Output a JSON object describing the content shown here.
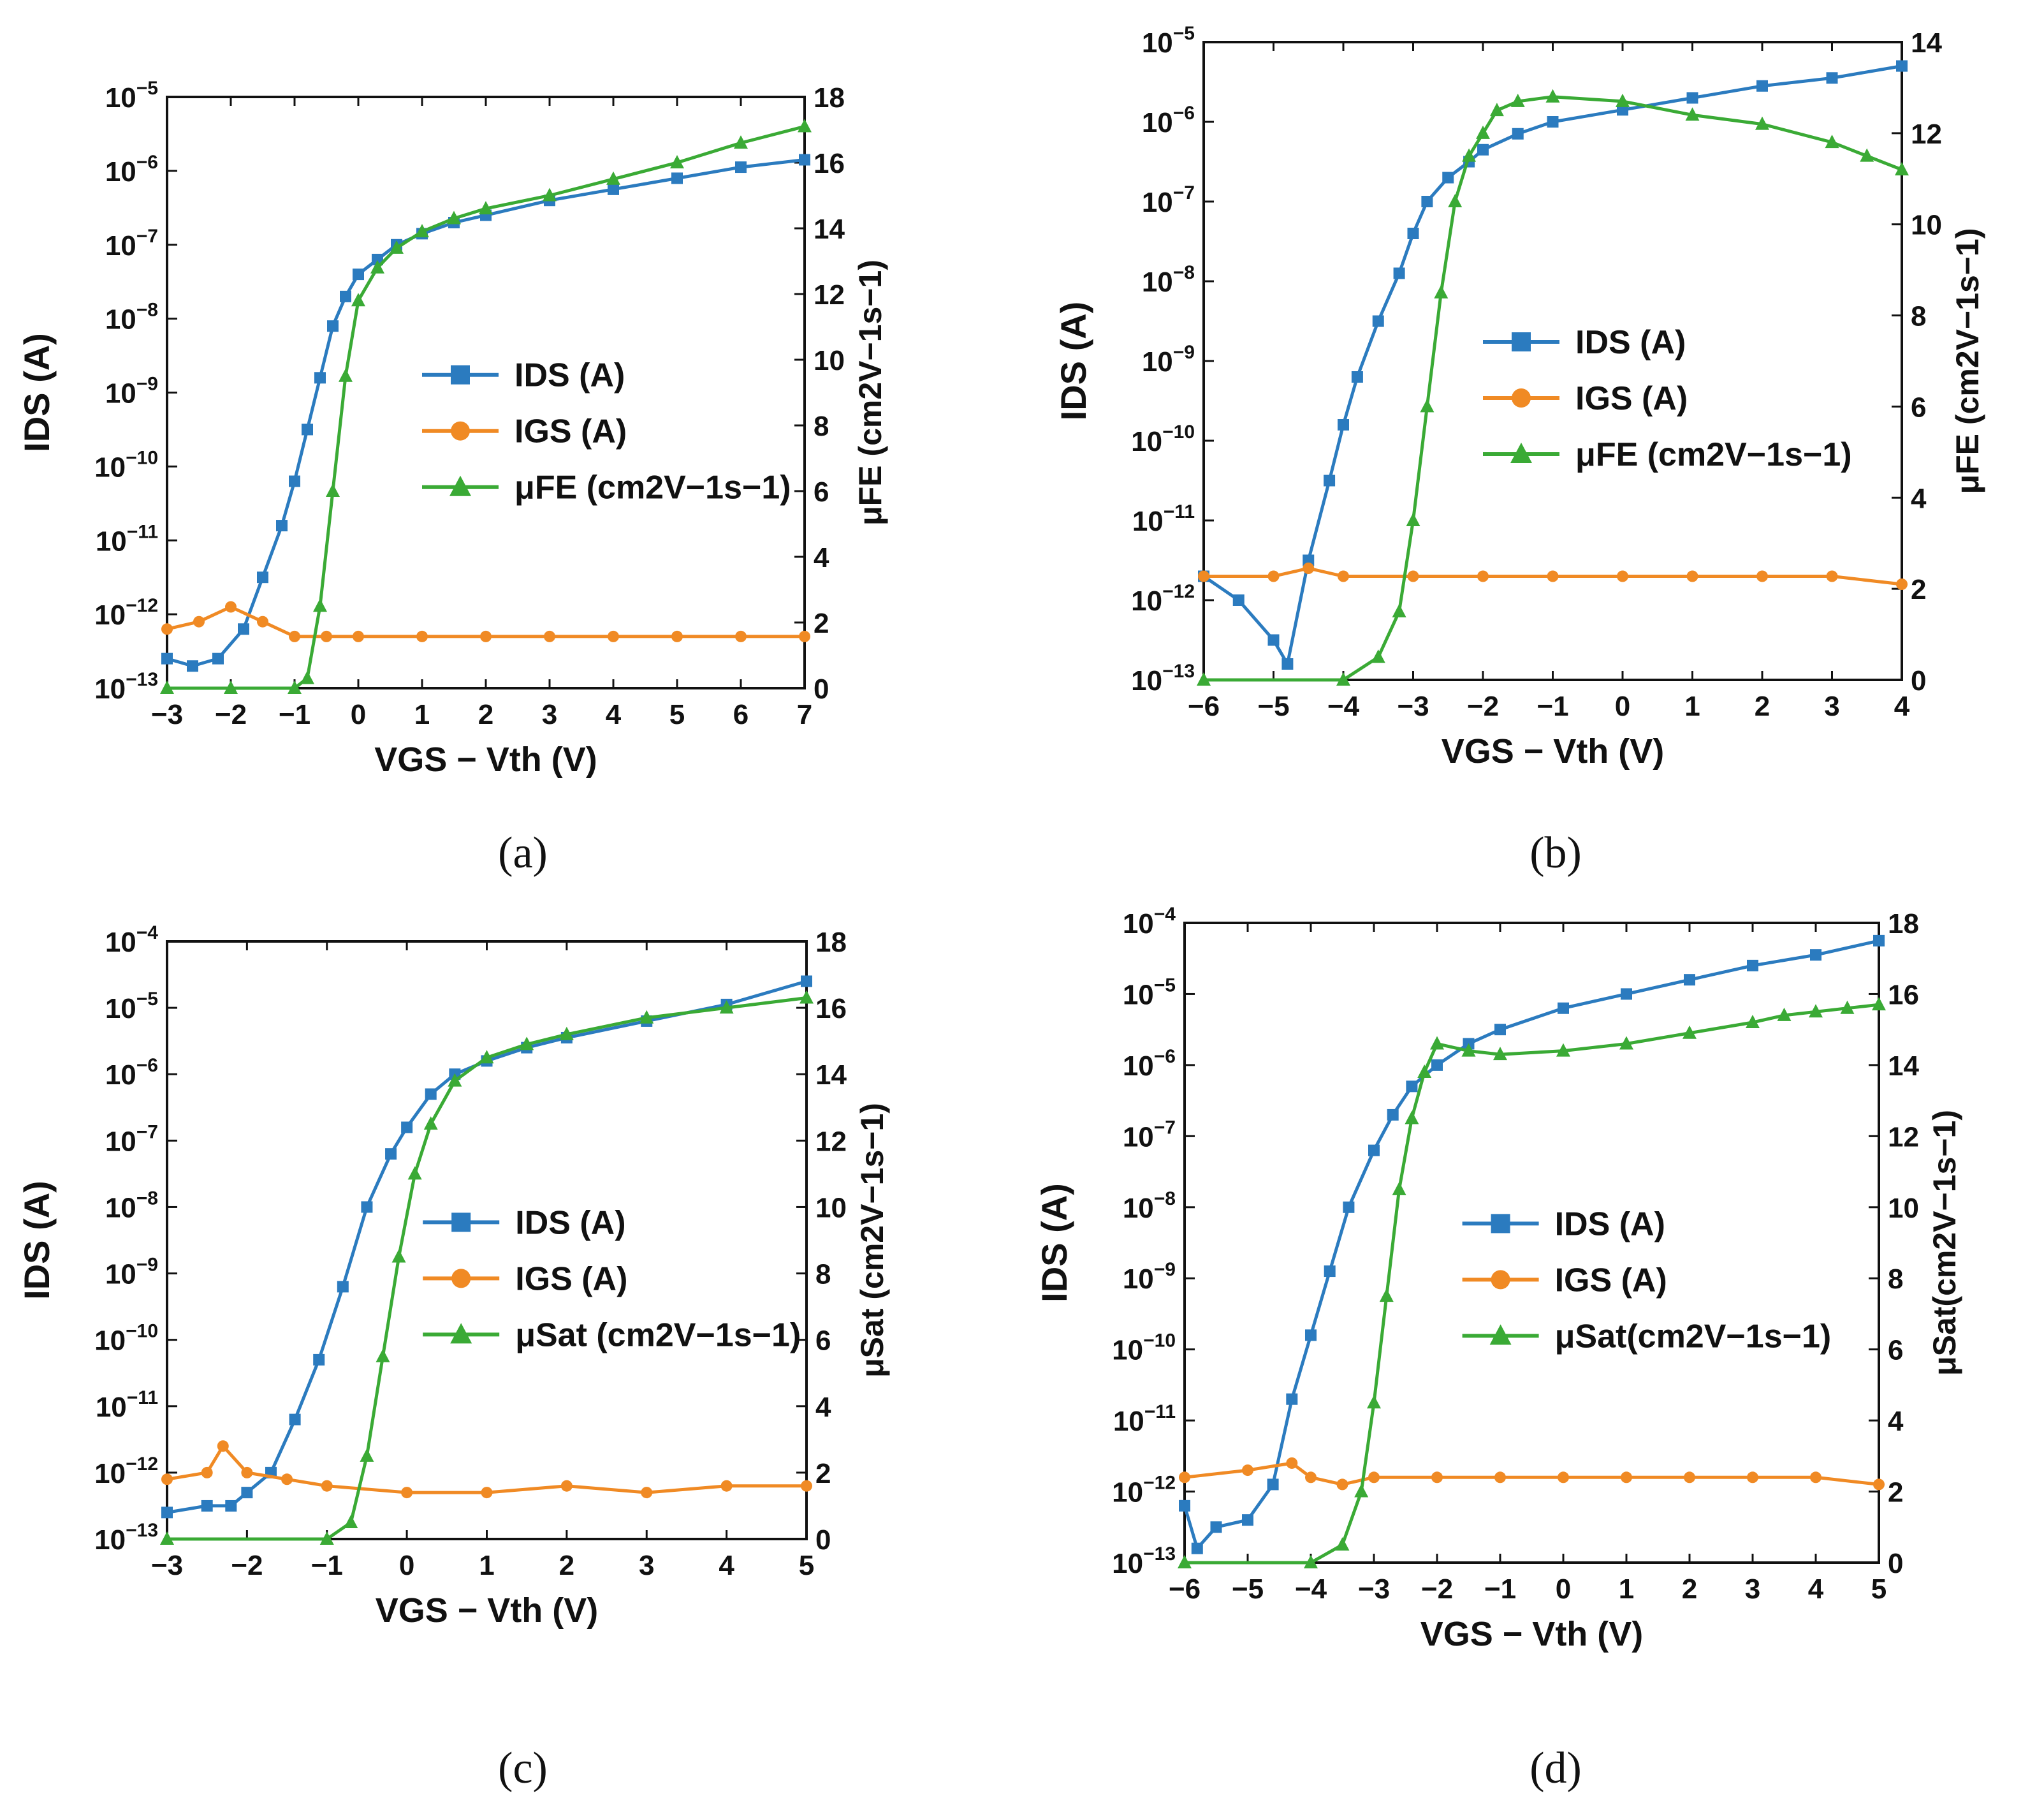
{
  "figure": {
    "panels": [
      {
        "id": "a",
        "label": "(a)"
      },
      {
        "id": "b",
        "label": "(b)"
      },
      {
        "id": "c",
        "label": "(c)"
      },
      {
        "id": "d",
        "label": "(d)"
      }
    ]
  },
  "colors": {
    "ids": "#2b7bbf",
    "igs": "#f08a24",
    "mu": "#3aaa35",
    "axis": "#111111"
  },
  "chart_data": [
    {
      "panel": "a",
      "type": "line",
      "xlabel": "VGS − Vth (V)",
      "ylabel": "IDS (A)",
      "y2label": "μFE (cm2V−1s−1)",
      "xlim": [
        -3,
        7
      ],
      "xticks": [
        -3,
        -2,
        -1,
        0,
        1,
        2,
        3,
        4,
        5,
        6,
        7
      ],
      "ylim_log": [
        -13,
        -5
      ],
      "yscale": "log",
      "y2lim": [
        0,
        18
      ],
      "y2ticks": [
        0,
        2,
        4,
        6,
        8,
        10,
        12,
        14,
        16,
        18
      ],
      "legend": [
        "IDS (A)",
        "IGS (A)",
        "μFE (cm2V−1s−1)"
      ],
      "legend_placement": "center-right",
      "series": [
        {
          "name": "IDS (A)",
          "axis": "left",
          "marker": "square",
          "x": [
            -3,
            -2.6,
            -2.2,
            -1.8,
            -1.5,
            -1.2,
            -1.0,
            -0.8,
            -0.6,
            -0.4,
            -0.2,
            0,
            0.3,
            0.6,
            1,
            1.5,
            2,
            3,
            4,
            5,
            6,
            7
          ],
          "y": [
            -12.6,
            -12.7,
            -12.6,
            -12.2,
            -11.5,
            -10.8,
            -10.2,
            -9.5,
            -8.8,
            -8.1,
            -7.7,
            -7.4,
            -7.2,
            -7.0,
            -6.85,
            -6.7,
            -6.6,
            -6.4,
            -6.25,
            -6.1,
            -5.95,
            -5.85
          ]
        },
        {
          "name": "IGS (A)",
          "axis": "left",
          "marker": "circle",
          "x": [
            -3,
            -2.5,
            -2,
            -1.5,
            -1,
            -0.5,
            0,
            1,
            2,
            3,
            4,
            5,
            6,
            7
          ],
          "y": [
            -12.2,
            -12.1,
            -11.9,
            -12.1,
            -12.3,
            -12.3,
            -12.3,
            -12.3,
            -12.3,
            -12.3,
            -12.3,
            -12.3,
            -12.3,
            -12.3
          ]
        },
        {
          "name": "μFE (cm2V−1s−1)",
          "axis": "right",
          "marker": "triangle",
          "x": [
            -3,
            -2,
            -1,
            -0.8,
            -0.6,
            -0.4,
            -0.2,
            0,
            0.3,
            0.6,
            1,
            1.5,
            2,
            3,
            4,
            5,
            6,
            7
          ],
          "y": [
            0,
            0,
            0,
            0.3,
            2.5,
            6,
            9.5,
            11.8,
            12.8,
            13.4,
            13.9,
            14.3,
            14.6,
            15.0,
            15.5,
            16.0,
            16.6,
            17.1
          ]
        }
      ]
    },
    {
      "panel": "b",
      "type": "line",
      "xlabel": "VGS − Vth (V)",
      "ylabel": "IDS (A)",
      "y2label": "μFE (cm2V−1s−1)",
      "xlim": [
        -6,
        4
      ],
      "xticks": [
        -6,
        -5,
        -4,
        -3,
        -2,
        -1,
        0,
        1,
        2,
        3,
        4
      ],
      "ylim_log": [
        -13,
        -5
      ],
      "yscale": "log",
      "y2lim": [
        0,
        14
      ],
      "y2ticks": [
        0,
        2,
        4,
        6,
        8,
        10,
        12,
        14
      ],
      "legend": [
        "IDS (A)",
        "IGS (A)",
        "μFE (cm2V−1s−1)"
      ],
      "legend_placement": "center-right",
      "series": [
        {
          "name": "IDS (A)",
          "axis": "left",
          "marker": "square",
          "x": [
            -6,
            -5.5,
            -5,
            -4.8,
            -4.5,
            -4.2,
            -4.0,
            -3.8,
            -3.5,
            -3.2,
            -3.0,
            -2.8,
            -2.5,
            -2.2,
            -2.0,
            -1.5,
            -1,
            0,
            1,
            2,
            3,
            4
          ],
          "y": [
            -11.7,
            -12.0,
            -12.5,
            -12.8,
            -11.5,
            -10.5,
            -9.8,
            -9.2,
            -8.5,
            -7.9,
            -7.4,
            -7.0,
            -6.7,
            -6.5,
            -6.35,
            -6.15,
            -6.0,
            -5.85,
            -5.7,
            -5.55,
            -5.45,
            -5.3
          ]
        },
        {
          "name": "IGS (A)",
          "axis": "left",
          "marker": "circle",
          "x": [
            -6,
            -5,
            -4.5,
            -4,
            -3,
            -2,
            -1,
            0,
            1,
            2,
            3,
            4
          ],
          "y": [
            -11.7,
            -11.7,
            -11.6,
            -11.7,
            -11.7,
            -11.7,
            -11.7,
            -11.7,
            -11.7,
            -11.7,
            -11.7,
            -11.8
          ]
        },
        {
          "name": "μFE (cm2V−1s−1)",
          "axis": "right",
          "marker": "triangle",
          "x": [
            -6,
            -4,
            -3.5,
            -3.2,
            -3.0,
            -2.8,
            -2.6,
            -2.4,
            -2.2,
            -2.0,
            -1.8,
            -1.5,
            -1,
            0,
            1,
            2,
            3,
            3.5,
            4
          ],
          "y": [
            0,
            0,
            0.5,
            1.5,
            3.5,
            6,
            8.5,
            10.5,
            11.5,
            12,
            12.5,
            12.7,
            12.8,
            12.7,
            12.4,
            12.2,
            11.8,
            11.5,
            11.2
          ]
        }
      ]
    },
    {
      "panel": "c",
      "type": "line",
      "xlabel": "VGS − Vth (V)",
      "ylabel": "IDS (A)",
      "y2label": "μSat (cm2V−1s−1)",
      "xlim": [
        -3,
        5
      ],
      "xticks": [
        -3,
        -2,
        -1,
        0,
        1,
        2,
        3,
        4,
        5
      ],
      "ylim_log": [
        -13,
        -4
      ],
      "yscale": "log",
      "y2lim": [
        0,
        18
      ],
      "y2ticks": [
        0,
        2,
        4,
        6,
        8,
        10,
        12,
        14,
        16,
        18
      ],
      "legend": [
        "IDS (A)",
        "IGS (A)",
        "μSat (cm2V−1s−1)"
      ],
      "legend_placement": "center-right",
      "series": [
        {
          "name": "IDS (A)",
          "axis": "left",
          "marker": "square",
          "x": [
            -3,
            -2.5,
            -2.2,
            -2.0,
            -1.7,
            -1.4,
            -1.1,
            -0.8,
            -0.5,
            -0.2,
            0,
            0.3,
            0.6,
            1,
            1.5,
            2,
            3,
            4,
            5
          ],
          "y": [
            -12.6,
            -12.5,
            -12.5,
            -12.3,
            -12.0,
            -11.2,
            -10.3,
            -9.2,
            -8.0,
            -7.2,
            -6.8,
            -6.3,
            -6.0,
            -5.8,
            -5.6,
            -5.45,
            -5.2,
            -4.95,
            -4.6
          ]
        },
        {
          "name": "IGS (A)",
          "axis": "left",
          "marker": "circle",
          "x": [
            -3,
            -2.5,
            -2.3,
            -2,
            -1.5,
            -1,
            0,
            1,
            2,
            3,
            4,
            5
          ],
          "y": [
            -12.1,
            -12.0,
            -11.6,
            -12.0,
            -12.1,
            -12.2,
            -12.3,
            -12.3,
            -12.2,
            -12.3,
            -12.2,
            -12.2
          ]
        },
        {
          "name": "μSat (cm2V−1s−1)",
          "axis": "right",
          "marker": "triangle",
          "x": [
            -3,
            -1,
            -0.7,
            -0.5,
            -0.3,
            -0.1,
            0.1,
            0.3,
            0.6,
            1,
            1.5,
            2,
            3,
            4,
            5
          ],
          "y": [
            0,
            0,
            0.5,
            2.5,
            5.5,
            8.5,
            11,
            12.5,
            13.8,
            14.5,
            14.9,
            15.2,
            15.7,
            16.0,
            16.3
          ]
        }
      ]
    },
    {
      "panel": "d",
      "type": "line",
      "xlabel": "VGS − Vth (V)",
      "ylabel": "IDS (A)",
      "y2label": "μSat(cm2V−1s−1)",
      "xlim": [
        -6,
        5
      ],
      "xticks": [
        -6,
        -5,
        -4,
        -3,
        -2,
        -1,
        0,
        1,
        2,
        3,
        4,
        5
      ],
      "ylim_log": [
        -13,
        -4
      ],
      "yscale": "log",
      "y2lim": [
        0,
        18
      ],
      "y2ticks": [
        0,
        2,
        4,
        6,
        8,
        10,
        12,
        14,
        16,
        18
      ],
      "legend": [
        "IDS (A)",
        "IGS (A)",
        "μSat(cm2V−1s−1)"
      ],
      "legend_placement": "center-right",
      "series": [
        {
          "name": "IDS (A)",
          "axis": "left",
          "marker": "square",
          "x": [
            -6,
            -5.8,
            -5.5,
            -5,
            -4.6,
            -4.3,
            -4.0,
            -3.7,
            -3.4,
            -3.0,
            -2.7,
            -2.4,
            -2.0,
            -1.5,
            -1,
            0,
            1,
            2,
            3,
            4,
            5
          ],
          "y": [
            -12.2,
            -12.8,
            -12.5,
            -12.4,
            -11.9,
            -10.7,
            -9.8,
            -8.9,
            -8.0,
            -7.2,
            -6.7,
            -6.3,
            -6.0,
            -5.7,
            -5.5,
            -5.2,
            -5.0,
            -4.8,
            -4.6,
            -4.45,
            -4.25
          ]
        },
        {
          "name": "IGS (A)",
          "axis": "left",
          "marker": "circle",
          "x": [
            -6,
            -5,
            -4.3,
            -4,
            -3.5,
            -3,
            -2,
            -1,
            0,
            1,
            2,
            3,
            4,
            5
          ],
          "y": [
            -11.8,
            -11.7,
            -11.6,
            -11.8,
            -11.9,
            -11.8,
            -11.8,
            -11.8,
            -11.8,
            -11.8,
            -11.8,
            -11.8,
            -11.8,
            -11.9
          ]
        },
        {
          "name": "μSat(cm2V−1s−1)",
          "axis": "right",
          "marker": "triangle",
          "x": [
            -6,
            -4,
            -3.5,
            -3.2,
            -3.0,
            -2.8,
            -2.6,
            -2.4,
            -2.2,
            -2.0,
            -1.5,
            -1,
            0,
            1,
            2,
            3,
            3.5,
            4,
            4.5,
            5
          ],
          "y": [
            0,
            0,
            0.5,
            2,
            4.5,
            7.5,
            10.5,
            12.5,
            13.8,
            14.6,
            14.4,
            14.3,
            14.4,
            14.6,
            14.9,
            15.2,
            15.4,
            15.5,
            15.6,
            15.7
          ]
        }
      ]
    }
  ]
}
